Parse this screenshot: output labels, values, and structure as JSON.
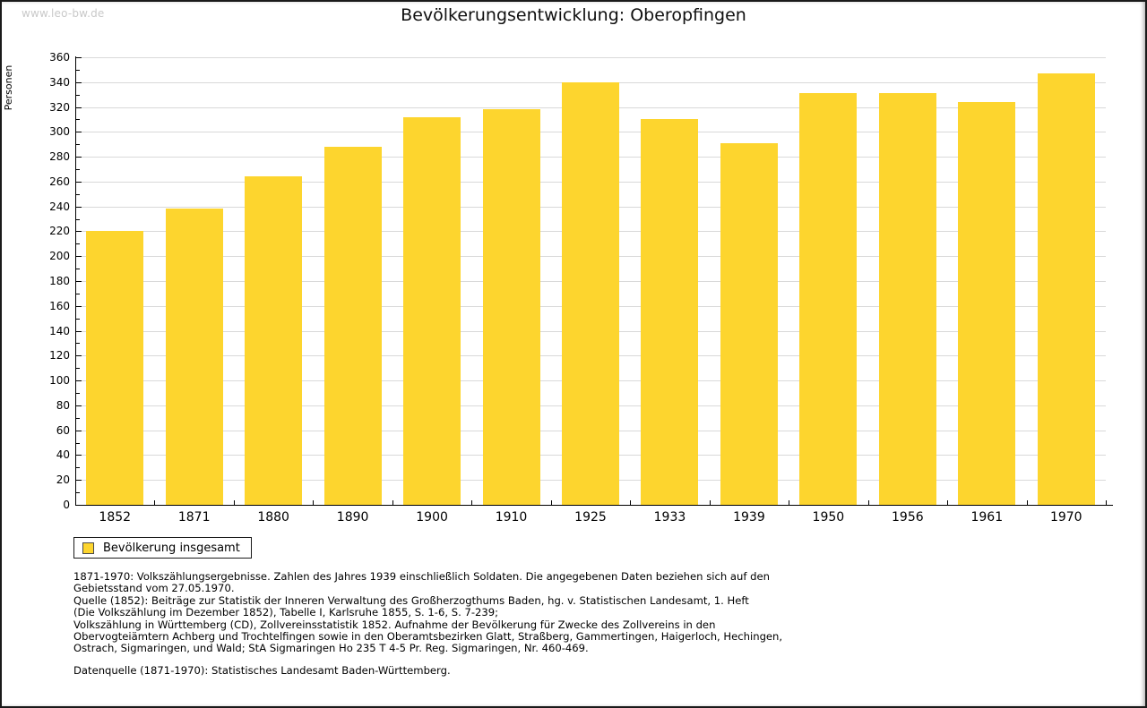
{
  "watermark": "www.leo-bw.de",
  "title": "Bevölkerungsentwicklung: Oberopfingen",
  "chart_data": {
    "type": "bar",
    "title": "Bevölkerungsentwicklung: Oberopfingen",
    "categories": [
      "1852",
      "1871",
      "1880",
      "1890",
      "1900",
      "1910",
      "1925",
      "1933",
      "1939",
      "1950",
      "1956",
      "1961",
      "1970"
    ],
    "series": [
      {
        "name": "Bevölkerung insgesamt",
        "values": [
          220,
          238,
          264,
          288,
          312,
          318,
          340,
          310,
          291,
          331,
          331,
          324,
          347
        ]
      }
    ],
    "xlabel": "",
    "ylabel": "Personen",
    "ylim": [
      0,
      360
    ],
    "ytick_step": 20,
    "yminor_step": 10,
    "grid": true,
    "bar_color": "#fdd52e",
    "legend_position": "bottom-left"
  },
  "legend": {
    "label": "Bevölkerung insgesamt",
    "swatch_color": "#fdd52e"
  },
  "footnotes": [
    "1871-1970: Volkszählungsergebnisse. Zahlen des Jahres 1939 einschließlich Soldaten. Die angegebenen Daten beziehen sich auf den",
    "Gebietsstand vom 27.05.1970.",
    "Quelle (1852): Beiträge zur Statistik der Inneren Verwaltung des Großherzogthums Baden, hg. v. Statistischen Landesamt, 1. Heft",
    "(Die Volkszählung im Dezember 1852), Tabelle I, Karlsruhe 1855, S. 1-6, S. 7-239;",
    "Volkszählung in Württemberg (CD), Zollvereinsstatistik 1852. Aufnahme der Bevölkerung für Zwecke des Zollvereins in den",
    "Obervogteiämtern Achberg und Trochtelfingen sowie in den Oberamtsbezirken Glatt, Straßberg, Gammertingen, Haigerloch, Hechingen,",
    "Ostrach, Sigmaringen, und Wald; StA Sigmaringen Ho 235 T 4-5 Pr. Reg. Sigmaringen, Nr. 460-469."
  ],
  "datasource": "Datenquelle (1871-1970): Statistisches Landesamt Baden-Württemberg.",
  "colors": {
    "bar": "#fdd52e",
    "gridline": "#d9d9d9",
    "axis": "#000000",
    "watermark": "#c9c9c9",
    "border": "#1a1a1a"
  }
}
